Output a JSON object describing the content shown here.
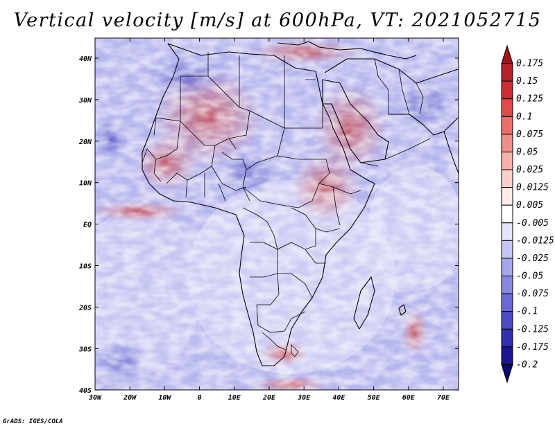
{
  "title": "Vertical velocity [m/s] at 600hPa, VT: 2021052715",
  "credit": "GrADS: IGES/COLA",
  "map": {
    "lon_labels": [
      "30W",
      "20W",
      "10W",
      "0",
      "10E",
      "20E",
      "30E",
      "40E",
      "50E",
      "60E",
      "70E"
    ],
    "lat_labels": [
      "40N",
      "30N",
      "20N",
      "10N",
      "EQ",
      "10S",
      "20S",
      "30S",
      "40S"
    ]
  },
  "colorbar": {
    "levels": [
      "0.175",
      "0.15",
      "0.125",
      "0.1",
      "0.075",
      "0.05",
      "0.025",
      "0.0125",
      "0.005",
      "-0.005",
      "-0.0125",
      "-0.025",
      "-0.05",
      "-0.075",
      "-0.1",
      "-0.125",
      "-0.175",
      "-0.2"
    ],
    "colors": [
      "#a01418",
      "#b82028",
      "#d02c34",
      "#e04c4c",
      "#ec6e6a",
      "#f08e88",
      "#f6b0aa",
      "#fad0cc",
      "#fdecea",
      "#ffffff",
      "#e4e4fb",
      "#c6c6f4",
      "#a6a6ec",
      "#8888e2",
      "#6a6ad6",
      "#4c4cc8",
      "#3030b0",
      "#1c1494",
      "#0c0870"
    ]
  }
}
